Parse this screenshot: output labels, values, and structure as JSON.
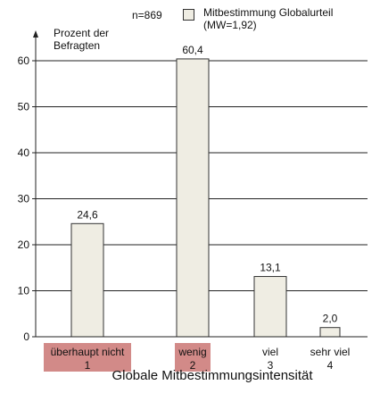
{
  "chart_data": {
    "type": "bar",
    "categories": [
      {
        "label": "überhaupt nicht",
        "code": "1",
        "highlight": true
      },
      {
        "label": "wenig",
        "code": "2",
        "highlight": true
      },
      {
        "label": "viel",
        "code": "3",
        "highlight": false
      },
      {
        "label": "sehr viel",
        "code": "4",
        "highlight": false
      }
    ],
    "values": [
      24.6,
      60.4,
      13.1,
      2.0
    ],
    "value_labels": [
      "24,6",
      "60,4",
      "13,1",
      "2,0"
    ],
    "ylim": [
      0,
      60
    ],
    "yticks": [
      0,
      10,
      20,
      30,
      40,
      50,
      60
    ],
    "ylabel": "Prozent der\nBefragten",
    "xlabel": "Globale Mitbestimmungsintensität",
    "sample": "n=869",
    "legend": "Mitbestimmung Globalurteil\n(MW=1,92)",
    "grid": true,
    "colors": {
      "bar": "#efede3",
      "highlight": "#d28a88",
      "line": "#222222"
    }
  }
}
